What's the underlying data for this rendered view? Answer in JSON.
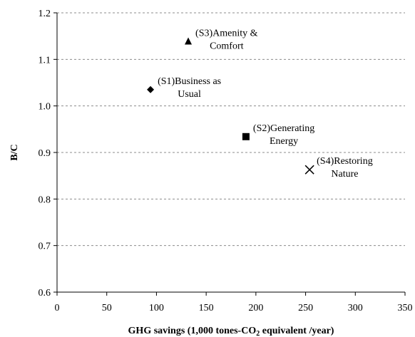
{
  "chart_data": {
    "type": "scatter",
    "xlabel": {
      "pre": "GHG savings (1,000 tones-CO",
      "sub": "2",
      "post": " equivalent /year)"
    },
    "ylabel": "B/C",
    "xlim": [
      0,
      350
    ],
    "ylim": [
      0.6,
      1.2
    ],
    "x_ticks": [
      0,
      50,
      100,
      150,
      200,
      250,
      300,
      350
    ],
    "y_ticks": [
      0.6,
      0.7,
      0.8,
      0.9,
      1.0,
      1.1,
      1.2
    ],
    "x_tick_labels": [
      "0",
      "50",
      "100",
      "150",
      "200",
      "250",
      "300",
      "350"
    ],
    "y_tick_labels": [
      "0.6",
      "0.7",
      "0.8",
      "0.9",
      "1.0",
      "1.1",
      "1.2"
    ],
    "grid": "horizontal dashed",
    "points": [
      {
        "x": 94,
        "y": 1.035,
        "marker": "diamond",
        "label": [
          "(S1)Business as",
          "Usual"
        ]
      },
      {
        "x": 190,
        "y": 0.934,
        "marker": "square",
        "label": [
          "(S2)Generating",
          "Energy"
        ]
      },
      {
        "x": 132,
        "y": 1.138,
        "marker": "triangle",
        "label": [
          "(S3)Amenity &",
          "Comfort"
        ]
      },
      {
        "x": 254,
        "y": 0.863,
        "marker": "x",
        "label": [
          "(S4)Restoring",
          "Nature"
        ]
      }
    ]
  }
}
